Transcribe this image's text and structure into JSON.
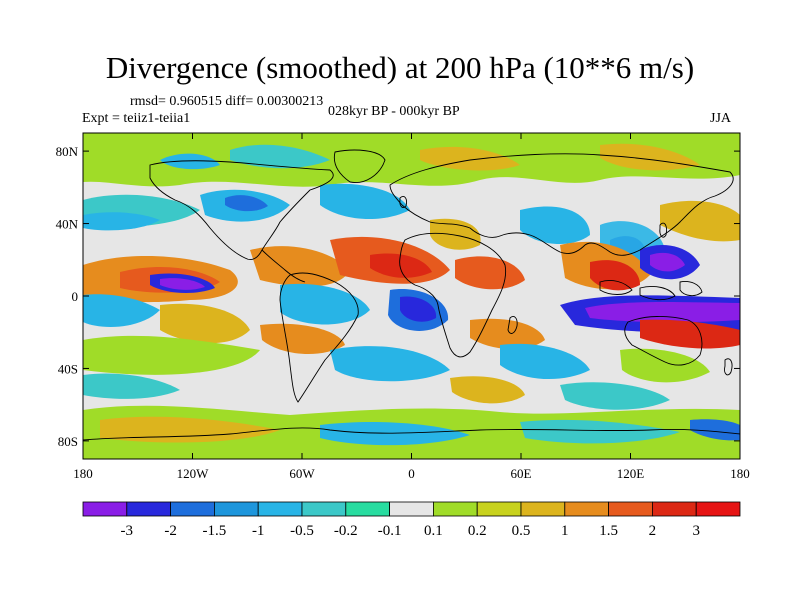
{
  "title": "Divergence (smoothed) at 200 hPa (10**6 m/s)",
  "stats": "rmsd= 0.960515 diff= 0.00300213",
  "experiment": "Expt = teiiz1-teiia1",
  "period": "028kyr BP - 000kyr BP",
  "season": "JJA",
  "lon_ticks": [
    "180",
    "120W",
    "60W",
    "0",
    "60E",
    "120E",
    "180"
  ],
  "lat_ticks": [
    "80N",
    "40N",
    "0",
    "40S",
    "80S"
  ],
  "colorbar": {
    "labels": [
      "-3",
      "-2",
      "-1.5",
      "-1",
      "-0.5",
      "-0.2",
      "-0.1",
      "0.1",
      "0.2",
      "0.5",
      "1",
      "1.5",
      "2",
      "3"
    ],
    "colors": [
      "#8a1ee6",
      "#2828dc",
      "#1e6edc",
      "#1e96dc",
      "#28b4e6",
      "#3cc8c8",
      "#28dca0",
      "#e6e6e6",
      "#a0dc28",
      "#c8d21e",
      "#dcb41e",
      "#e68c1e",
      "#e65a1e",
      "#dc2814",
      "#e61414"
    ]
  }
}
